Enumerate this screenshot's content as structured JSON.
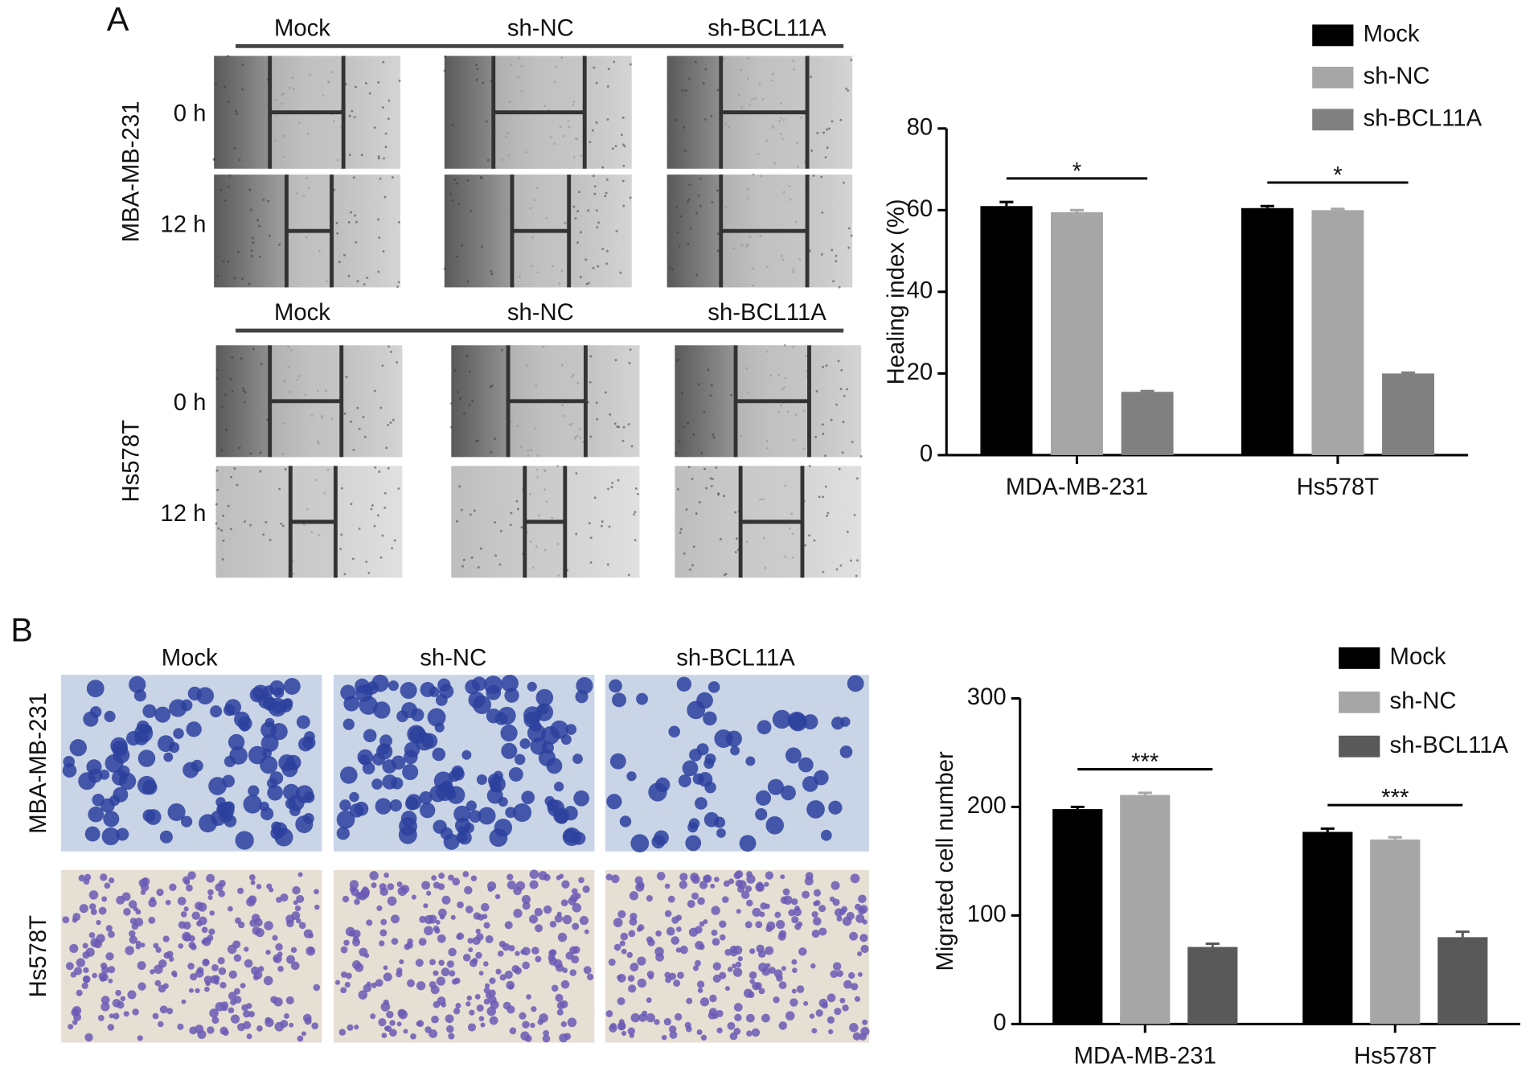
{
  "figure": {
    "panel_labels": [
      "A",
      "B"
    ],
    "wound_assay": {
      "columns": [
        "Mock",
        "sh-NC",
        "sh-BCL11A"
      ],
      "cell_lines": [
        "MBA-MB-231",
        "Hs578T"
      ],
      "times": [
        "0 h",
        "12 h"
      ]
    },
    "transwell_assay": {
      "columns": [
        "Mock",
        "sh-NC",
        "sh-BCL11A"
      ],
      "cell_lines": [
        "MBA-MB-231",
        "Hs578T"
      ]
    }
  },
  "chart_data": [
    {
      "type": "bar",
      "y_label": "Healing index (%)",
      "categories": [
        "MDA-MB-231",
        "Hs578T"
      ],
      "series": [
        {
          "name": "Mock",
          "color": "#000000",
          "values": [
            61,
            60.5
          ],
          "errors": [
            1,
            0.5
          ]
        },
        {
          "name": "sh-NC",
          "color": "#a6a6a6",
          "values": [
            59.5,
            60
          ],
          "errors": [
            0.5,
            0.3
          ]
        },
        {
          "name": "sh-BCL11A",
          "color": "#808080",
          "values": [
            15.5,
            20
          ],
          "errors": [
            0.2,
            0.2
          ]
        }
      ],
      "annotations": [
        "*",
        "*"
      ],
      "ylim": [
        0,
        80
      ],
      "yticks": [
        0,
        20,
        40,
        60,
        80
      ],
      "grid": false,
      "legend": "top-right"
    },
    {
      "type": "bar",
      "y_label": "Migrated cell number",
      "categories": [
        "MDA-MB-231",
        "Hs578T"
      ],
      "series": [
        {
          "name": "Mock",
          "color": "#000000",
          "values": [
            198,
            177
          ],
          "errors": [
            2,
            3
          ]
        },
        {
          "name": "sh-NC",
          "color": "#a6a6a6",
          "values": [
            211,
            170
          ],
          "errors": [
            2,
            2
          ]
        },
        {
          "name": "sh-BCL11A",
          "color": "#595959",
          "values": [
            71,
            80
          ],
          "errors": [
            3,
            5
          ]
        }
      ],
      "annotations": [
        "***",
        "***"
      ],
      "ylim": [
        0,
        300
      ],
      "yticks": [
        0,
        100,
        200,
        300
      ],
      "grid": false,
      "legend": "top-right"
    }
  ]
}
